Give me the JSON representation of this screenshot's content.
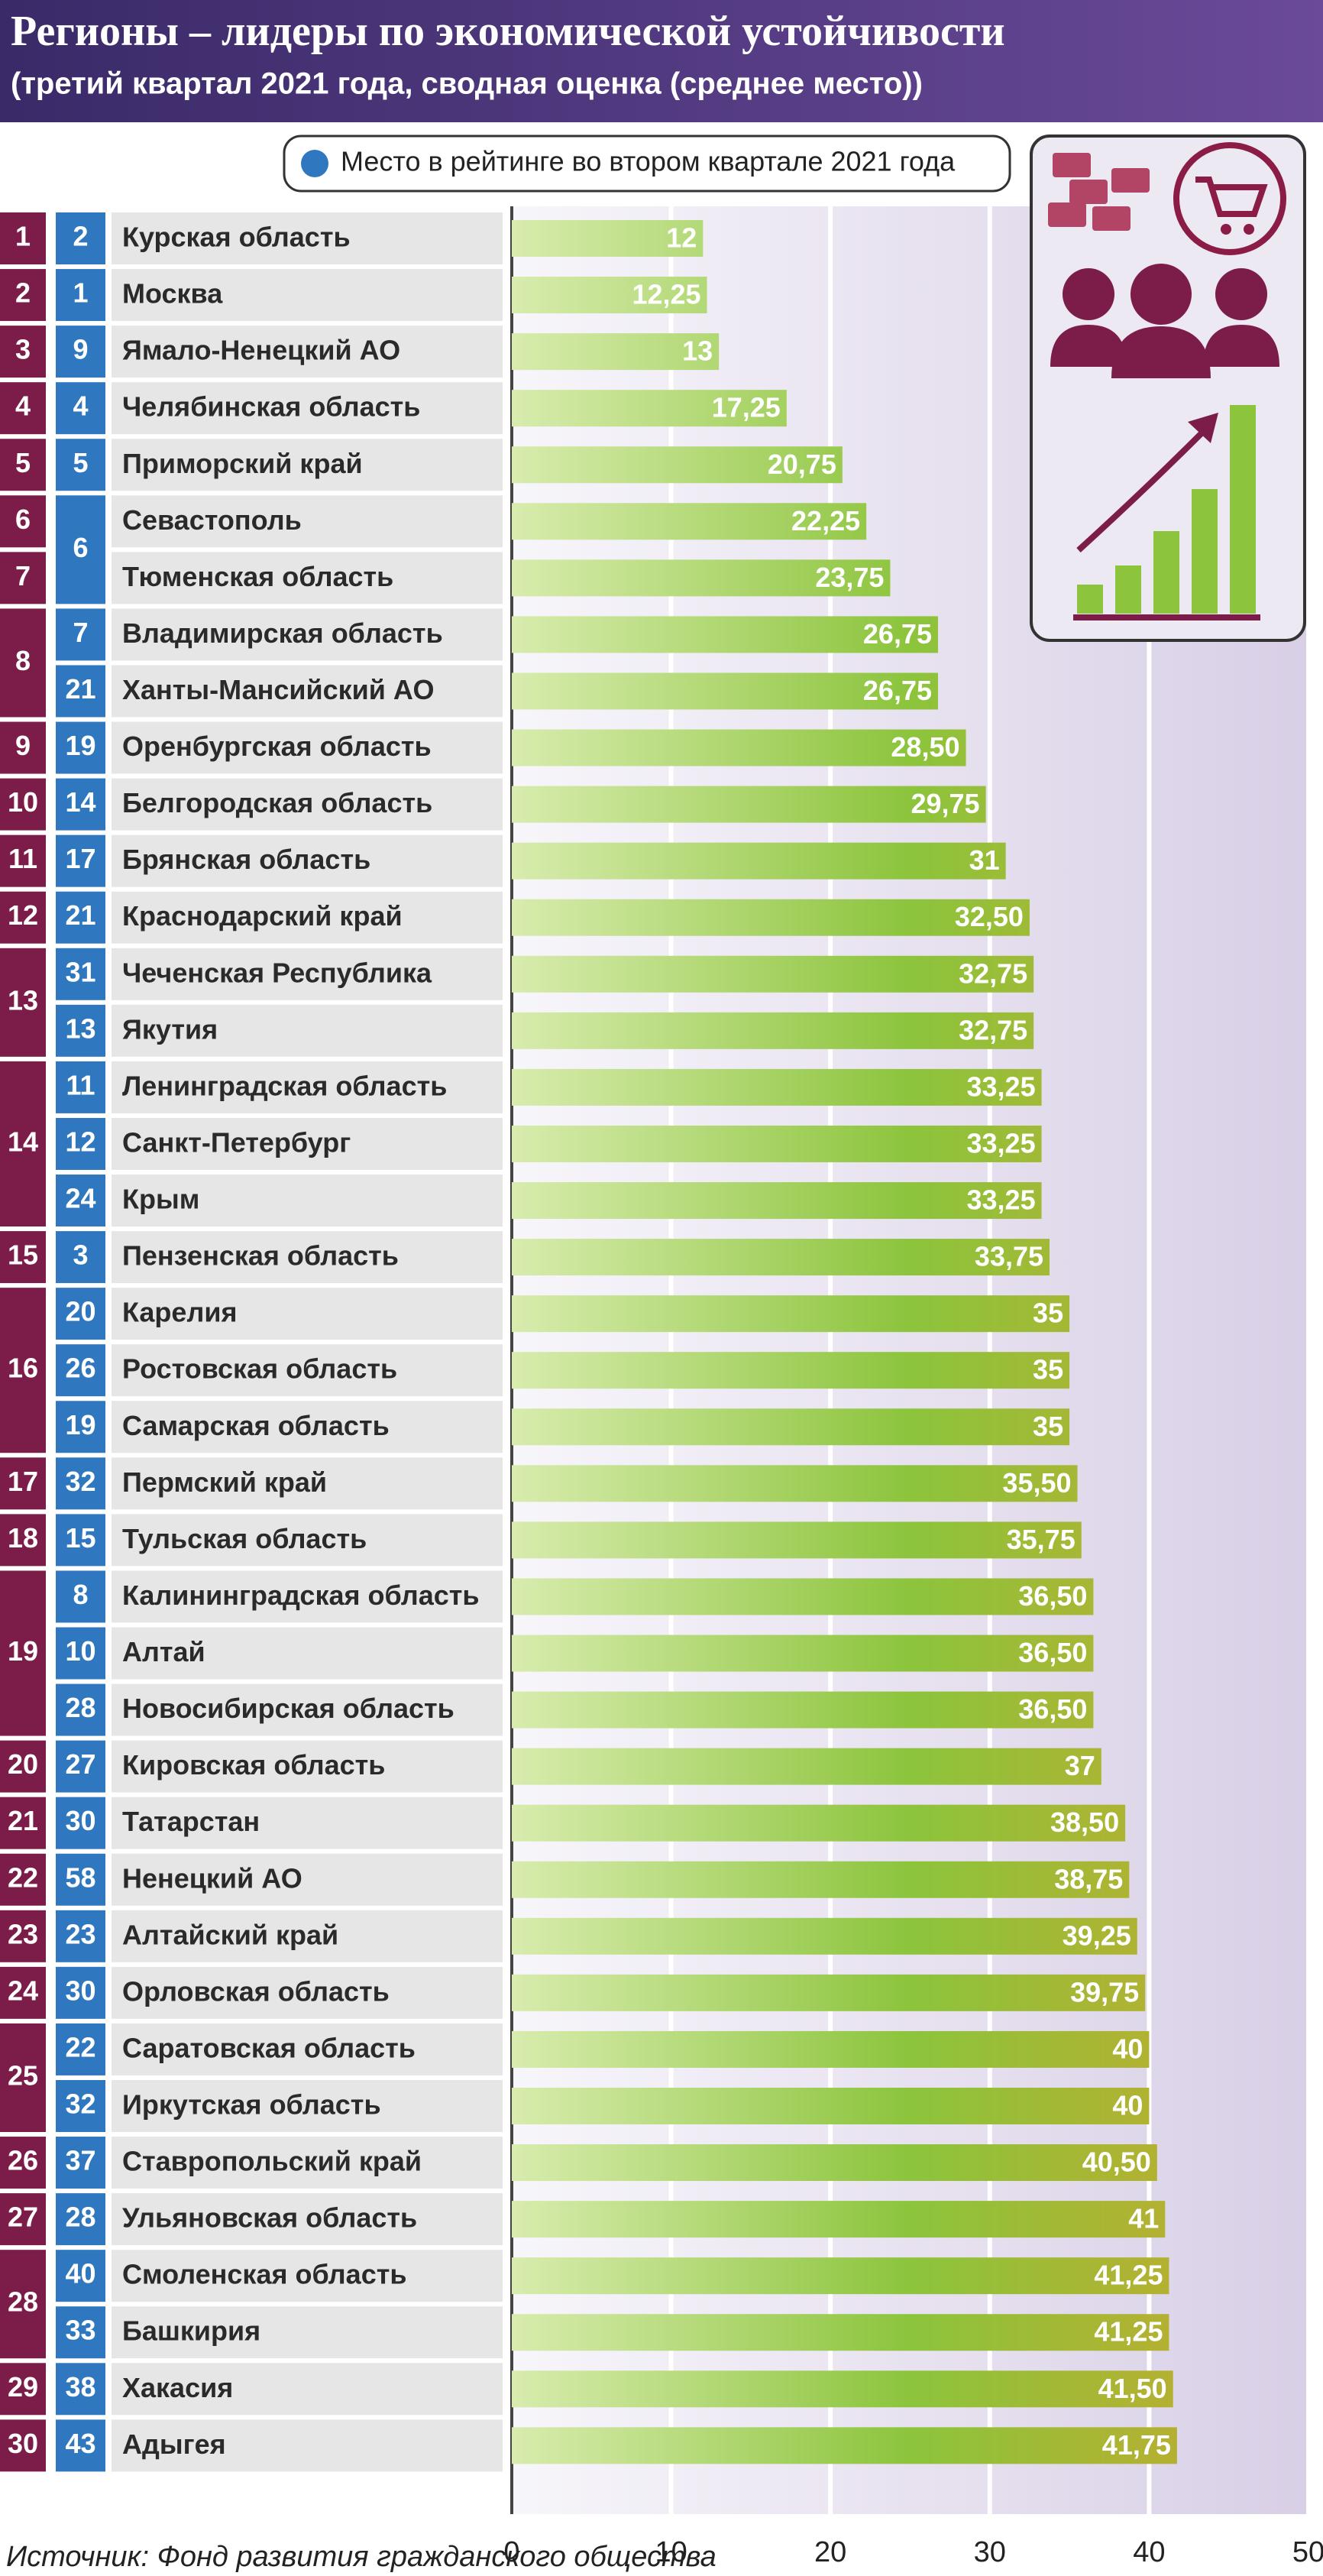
{
  "title": "Регионы – лидеры по экономической устойчивости",
  "subtitle": "(третий квартал 2021 года, сводная оценка (среднее место))",
  "source": "Источник: Фонд развития гражданского общества",
  "chart_data": {
    "type": "bar",
    "orientation": "horizontal",
    "legend": "Место в рейтинге во втором квартале 2021 года",
    "categories": [
      "Курская область",
      "Москва",
      "Ямало-Ненецкий АО",
      "Челябинская область",
      "Приморский край",
      "Севастополь",
      "Тюменская область",
      "Владимирская область",
      "Ханты-Мансийский АО",
      "Оренбургская область",
      "Белгородская область",
      "Брянская область",
      "Краснодарский край",
      "Чеченская Республика",
      "Якутия",
      "Ленинградская область",
      "Санкт-Петербург",
      "Крым",
      "Пензенская область",
      "Карелия",
      "Ростовская область",
      "Самарская область",
      "Пермский край",
      "Тульская область",
      "Калининградская область",
      "Алтай",
      "Новосибирская область",
      "Кировская область",
      "Татарстан",
      "Ненецкий АО",
      "Алтайский край",
      "Орловская область",
      "Саратовская область",
      "Иркутская область",
      "Ставропольский край",
      "Ульяновская область",
      "Смоленская область",
      "Башкирия",
      "Хакасия",
      "Адыгея"
    ],
    "values": [
      12,
      12.25,
      13,
      17.25,
      20.75,
      22.25,
      23.75,
      26.75,
      26.75,
      28.5,
      29.75,
      31,
      32.5,
      32.75,
      32.75,
      33.25,
      33.25,
      33.25,
      33.75,
      35,
      35,
      35,
      35.5,
      35.75,
      36.5,
      36.5,
      36.5,
      37,
      38.5,
      38.75,
      39.25,
      39.75,
      40,
      40,
      40.5,
      41,
      41.25,
      41.25,
      41.5,
      41.75
    ],
    "value_labels": [
      "12",
      "12,25",
      "13",
      "17,25",
      "20,75",
      "22,25",
      "23,75",
      "26,75",
      "26,75",
      "28,50",
      "29,75",
      "31",
      "32,50",
      "32,75",
      "32,75",
      "33,25",
      "33,25",
      "33,25",
      "33,75",
      "35",
      "35",
      "35",
      "35,50",
      "35,75",
      "36,50",
      "36,50",
      "36,50",
      "37",
      "38,50",
      "38,75",
      "39,25",
      "39,75",
      "40",
      "40",
      "40,50",
      "41",
      "41,25",
      "41,25",
      "41,50",
      "41,75"
    ],
    "rank": [
      1,
      2,
      3,
      4,
      5,
      6,
      7,
      8,
      null,
      9,
      10,
      11,
      12,
      13,
      null,
      14,
      null,
      null,
      15,
      16,
      null,
      null,
      17,
      18,
      19,
      null,
      null,
      20,
      21,
      22,
      23,
      24,
      25,
      null,
      26,
      27,
      28,
      null,
      29,
      30
    ],
    "previous_place": [
      2,
      1,
      9,
      4,
      5,
      6,
      null,
      7,
      21,
      19,
      14,
      17,
      21,
      31,
      13,
      11,
      12,
      24,
      3,
      20,
      26,
      19,
      32,
      15,
      8,
      10,
      28,
      27,
      30,
      58,
      23,
      30,
      22,
      32,
      37,
      28,
      40,
      33,
      38,
      43
    ],
    "xlim": [
      0,
      50
    ],
    "xticks": [
      0,
      10,
      20,
      30,
      40,
      50
    ],
    "grid": true,
    "rank_color": "#7b1d48",
    "previous_color": "#2f78bf",
    "bar_gradient": [
      "#d8ecae",
      "#8cc43c",
      "#c9a62c"
    ]
  }
}
